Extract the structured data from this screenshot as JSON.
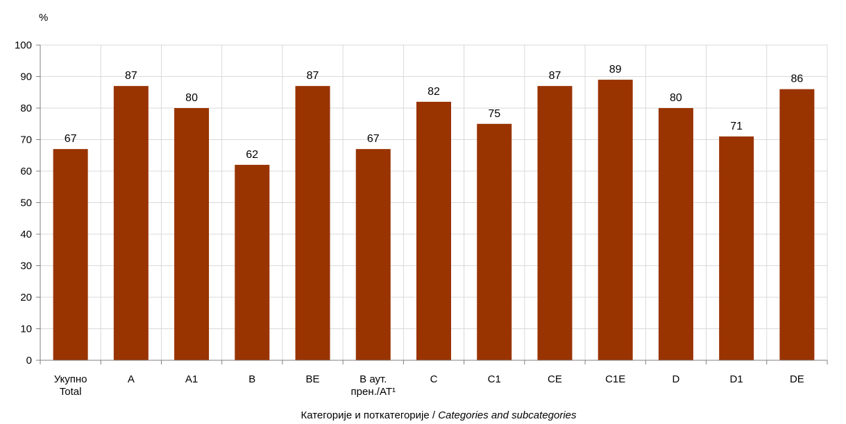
{
  "chart_data": {
    "type": "bar",
    "unit_label": "%",
    "categories": [
      [
        "Укупно",
        "Total"
      ],
      [
        "A"
      ],
      [
        "A1"
      ],
      [
        "B"
      ],
      [
        "BE"
      ],
      [
        "B аут.",
        "прен./AT¹"
      ],
      [
        "C"
      ],
      [
        "C1"
      ],
      [
        "CE"
      ],
      [
        "C1E"
      ],
      [
        "D"
      ],
      [
        "D1"
      ],
      [
        "DE"
      ]
    ],
    "values": [
      67,
      87,
      80,
      62,
      87,
      67,
      82,
      75,
      87,
      89,
      80,
      71,
      86
    ],
    "xlabel": {
      "main": "Категорије и поткатегорије / ",
      "italic": "Categories and subcategories"
    },
    "ylim": [
      0,
      100
    ],
    "yticks": [
      0,
      10,
      20,
      30,
      40,
      50,
      60,
      70,
      80,
      90,
      100
    ],
    "grid": true,
    "data_labels": true,
    "colors": {
      "bar": "#993300",
      "grid": "#d9d9d9",
      "axis": "#7f7f7f"
    }
  }
}
